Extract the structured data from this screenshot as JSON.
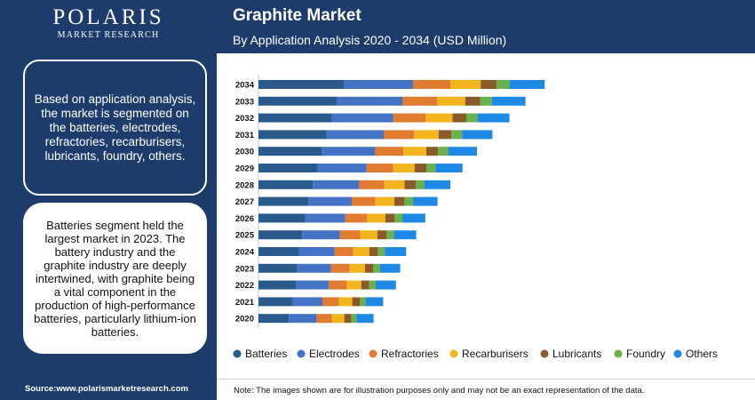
{
  "brand": {
    "name": "POLARIS",
    "sub": "MARKET RESEARCH"
  },
  "summary_text": "Based on application analysis, the market is segmented on the batteries, electrodes, refractories, recarburisers, lubricants, foundry, others.",
  "highlight_text": "Batteries segment held the largest market in 2023. The battery industry and the graphite industry are deeply intertwined, with graphite being a vital component in the production of high-performance batteries, particularly lithium-ion batteries.",
  "source_text": "Source:www.polarismarketresearch.com",
  "note_text": "Note: The images shown are for illustration purposes only and may not be an exact representation of the data.",
  "chart_data": {
    "type": "bar",
    "orientation": "horizontal",
    "stacked": true,
    "title": "Graphite Market",
    "subtitle": "By Application Analysis 2020 - 2034 (USD Million)",
    "xlabel": "",
    "ylabel": "",
    "grid": false,
    "legend_position": "bottom",
    "categories": [
      "2034",
      "2033",
      "2032",
      "2031",
      "2030",
      "2029",
      "2028",
      "2027",
      "2026",
      "2025",
      "2024",
      "2023",
      "2022",
      "2021",
      "2020"
    ],
    "series": [
      {
        "name": "Batteries",
        "color": "#2a5a8c",
        "values": [
          160,
          148,
          138,
          128,
          119,
          110,
          102,
          94,
          88,
          82,
          76,
          73,
          70,
          64,
          57
        ]
      },
      {
        "name": "Electrodes",
        "color": "#4472c4",
        "values": [
          130,
          122,
          115,
          107,
          100,
          93,
          87,
          81,
          75,
          71,
          67,
          63,
          62,
          56,
          52
        ]
      },
      {
        "name": "Refractories",
        "color": "#e07b2f",
        "values": [
          70,
          65,
          61,
          57,
          53,
          50,
          47,
          44,
          41,
          38,
          35,
          35,
          33,
          31,
          29
        ]
      },
      {
        "name": "Recarburisers",
        "color": "#f2b51d",
        "values": [
          57,
          53,
          50,
          46,
          43,
          40,
          38,
          36,
          34,
          32,
          30,
          29,
          28,
          25,
          23
        ]
      },
      {
        "name": "Lubricants",
        "color": "#8b5a2b",
        "values": [
          30,
          28,
          26,
          24,
          22,
          22,
          21,
          19,
          17,
          17,
          16,
          15,
          15,
          14,
          13
        ]
      },
      {
        "name": "Foundry",
        "color": "#6ab04c",
        "values": [
          24,
          22,
          21,
          20,
          19,
          17,
          16,
          16,
          15,
          14,
          13,
          13,
          12,
          11,
          10
        ]
      },
      {
        "name": "Others",
        "color": "#1e88e5",
        "values": [
          66,
          63,
          60,
          57,
          54,
          51,
          49,
          46,
          43,
          42,
          40,
          38,
          38,
          33,
          32
        ]
      }
    ]
  }
}
